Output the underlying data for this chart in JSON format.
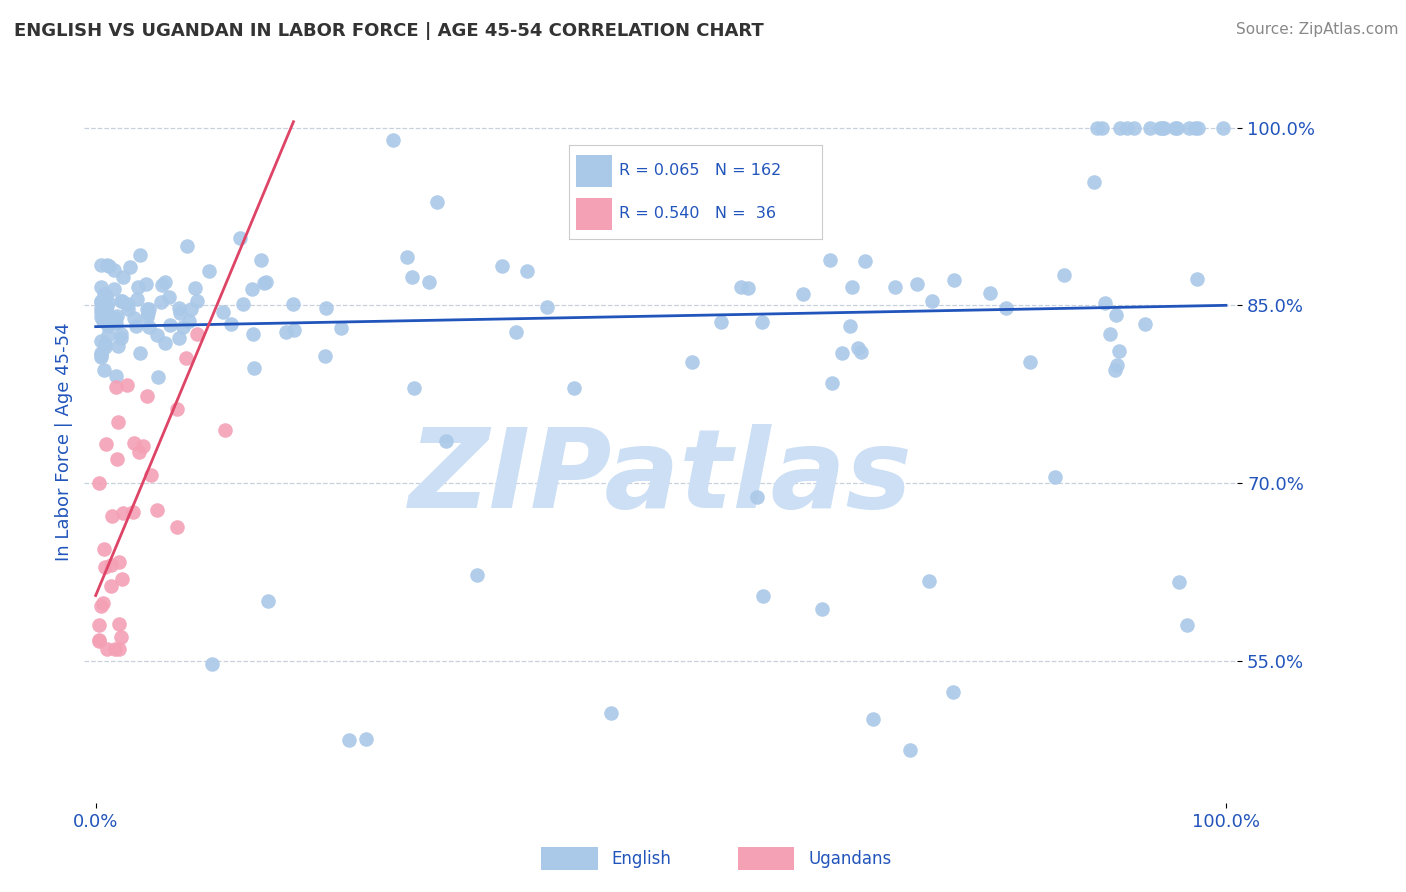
{
  "title": "ENGLISH VS UGANDAN IN LABOR FORCE | AGE 45-54 CORRELATION CHART",
  "source_text": "Source: ZipAtlas.com",
  "ylabel": "In Labor Force | Age 45-54",
  "xlim": [
    -0.01,
    1.01
  ],
  "ylim": [
    0.43,
    1.04
  ],
  "ytick_positions": [
    1.0,
    0.85,
    0.7,
    0.55
  ],
  "ytick_labels": [
    "100.0%",
    "85.0%",
    "70.0%",
    "55.0%"
  ],
  "english_color": "#aac8e8",
  "ugandan_color": "#f4a0b5",
  "english_line_color": "#2255bb",
  "ugandan_line_color": "#dd4466",
  "english_R": 0.065,
  "english_N": 162,
  "ugandan_R": 0.54,
  "ugandan_N": 36,
  "watermark": "ZIPatlas",
  "watermark_color": "#ccdff5",
  "background_color": "#ffffff",
  "title_color": "#333333",
  "source_color": "#888888",
  "axis_label_color": "#2255bb",
  "tick_label_color": "#2255bb",
  "grid_color": "#c8d0dc",
  "eng_trend_x": [
    0.0,
    1.0
  ],
  "eng_trend_y": [
    0.832,
    0.85
  ],
  "uga_trend_x": [
    0.0,
    0.175
  ],
  "uga_trend_y": [
    0.605,
    1.005
  ]
}
